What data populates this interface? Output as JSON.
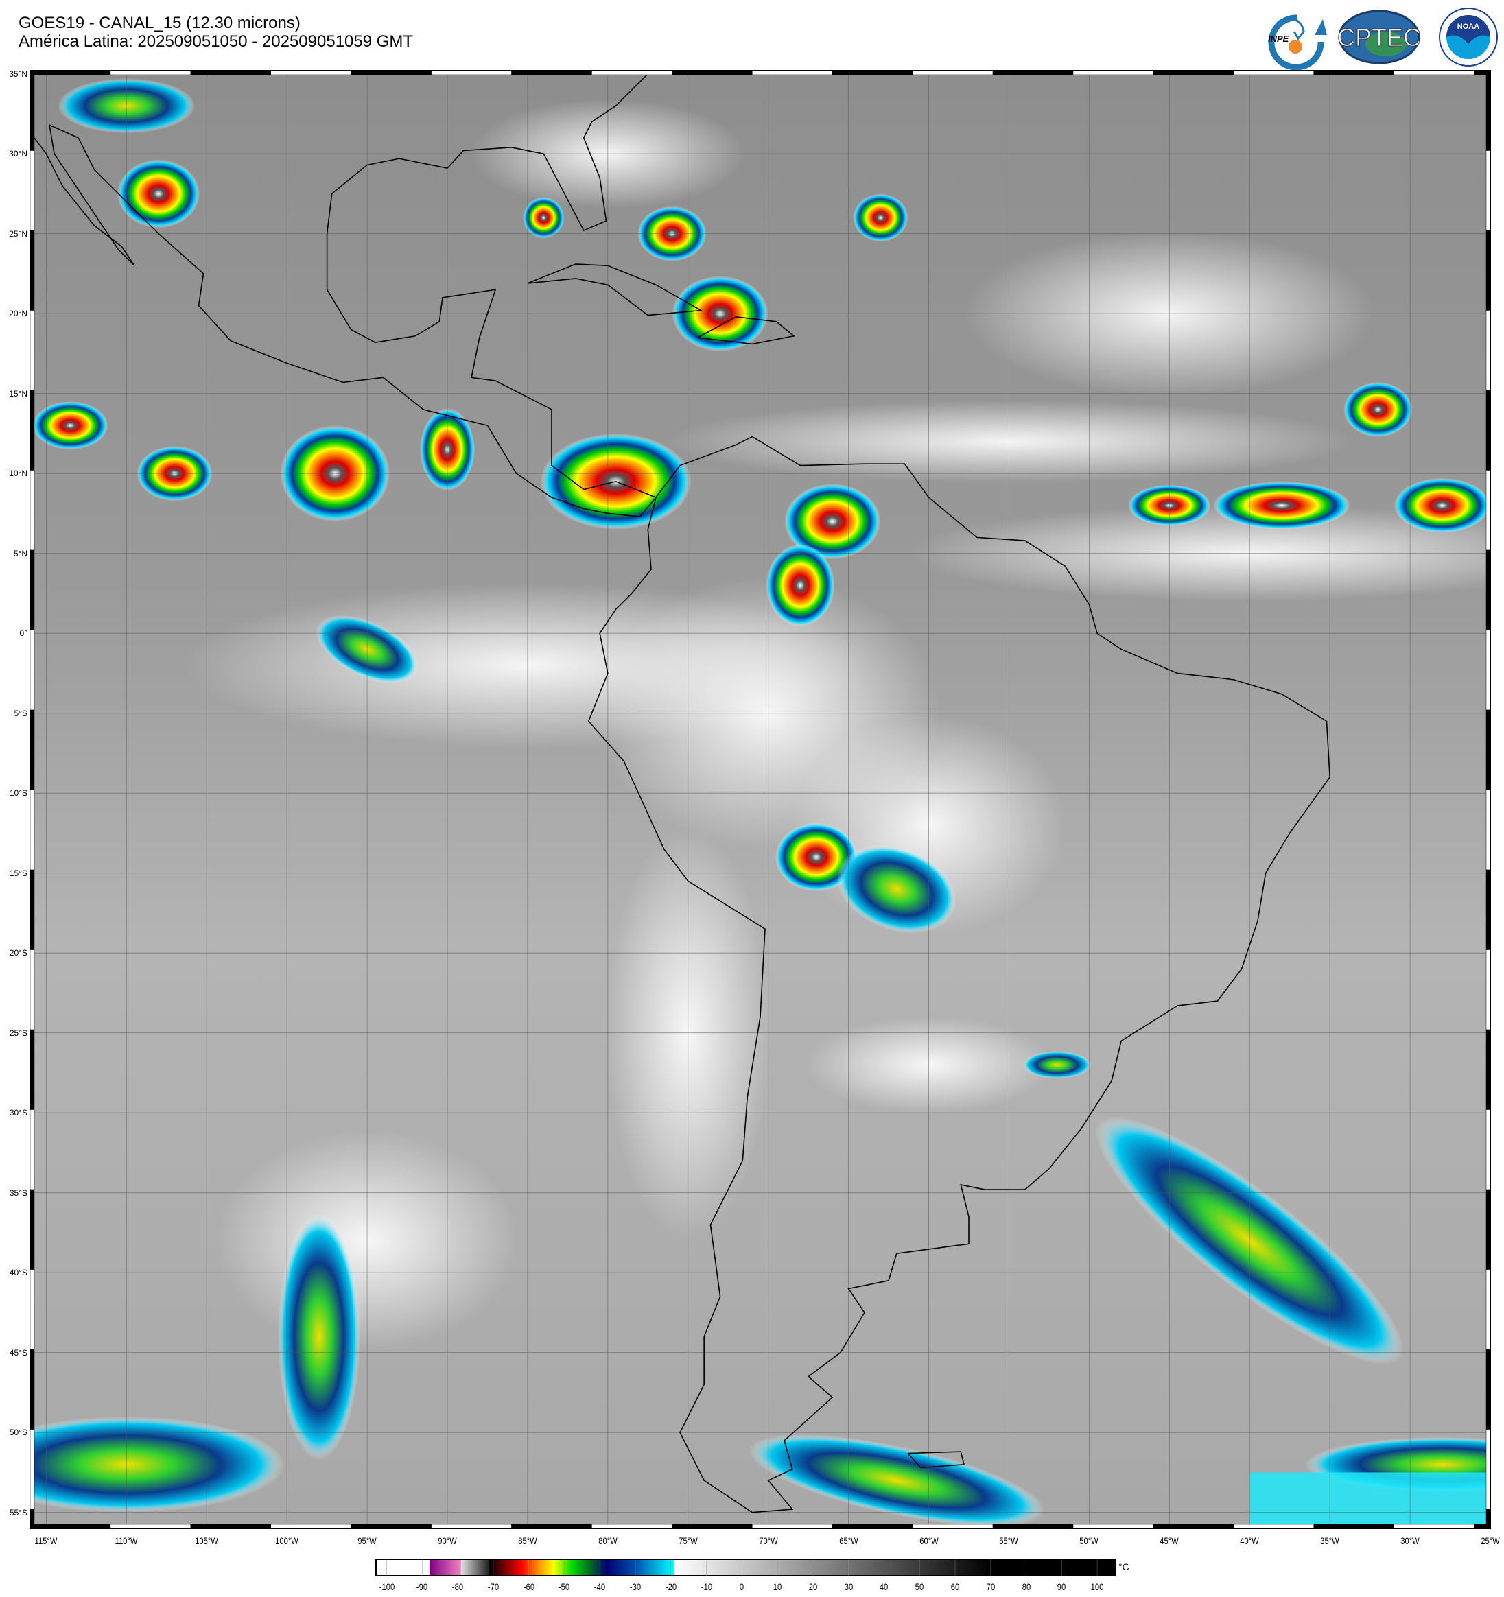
{
  "header": {
    "title_line1": "GOES19 - CANAL_15 (12.30 microns)",
    "title_line2": "América Latina: 202509051050 - 202509051059 GMT"
  },
  "logos": [
    {
      "name": "INPE",
      "text": "INPE"
    },
    {
      "name": "CPTEC",
      "text": "CPTEC"
    },
    {
      "name": "NOAA",
      "text": "NOAA",
      "ring_text": "NATIONAL OCEANIC AND ATMOSPHERIC ADMINISTRATION · U.S. DEPARTMENT OF COMMERCE"
    }
  ],
  "map": {
    "lon_range": [
      -116,
      -25
    ],
    "lat_range": [
      -56,
      35.2
    ],
    "grid": true,
    "grid_step_deg": 5,
    "lat_labels": [
      "35°N",
      "30°N",
      "25°N",
      "20°N",
      "15°N",
      "10°N",
      "5°N",
      "0°",
      "5°S",
      "10°S",
      "15°S",
      "20°S",
      "25°S",
      "30°S",
      "35°S",
      "40°S",
      "45°S",
      "50°S",
      "55°S"
    ],
    "lon_labels": [
      "115°W",
      "110°W",
      "105°W",
      "100°W",
      "95°W",
      "90°W",
      "85°W",
      "80°W",
      "75°W",
      "70°W",
      "65°W",
      "60°W",
      "55°W",
      "50°W",
      "45°W",
      "40°W",
      "35°W",
      "30°W",
      "25°W"
    ]
  },
  "colorbar": {
    "unit": "°C",
    "range": [
      -103,
      105
    ],
    "tick_labels": [
      "-100",
      "-90",
      "-80",
      "-70",
      "-60",
      "-50",
      "-40",
      "-30",
      "-20",
      "-10",
      "0",
      "10",
      "20",
      "30",
      "40",
      "50",
      "60",
      "70",
      "80",
      "90",
      "100"
    ],
    "stops": [
      {
        "t": -103,
        "color": "#ffffff"
      },
      {
        "t": -88,
        "color": "#ffffff"
      },
      {
        "t": -87.9,
        "color": "#800080"
      },
      {
        "t": -79.2,
        "color": "#f080c0"
      },
      {
        "t": -79,
        "color": "#e0e0e0"
      },
      {
        "t": -71.2,
        "color": "#202020"
      },
      {
        "t": -71,
        "color": "#000000"
      },
      {
        "t": -62,
        "color": "#ff0000"
      },
      {
        "t": -57,
        "color": "#ff9900"
      },
      {
        "t": -53,
        "color": "#ffff00"
      },
      {
        "t": -48,
        "color": "#00e000"
      },
      {
        "t": -43,
        "color": "#007020"
      },
      {
        "t": -38,
        "color": "#000070"
      },
      {
        "t": -30,
        "color": "#0050b0"
      },
      {
        "t": -19.2,
        "color": "#00ffff"
      },
      {
        "t": -19,
        "color": "#ffffff"
      },
      {
        "t": 70,
        "color": "#000000"
      },
      {
        "t": 105,
        "color": "#000000"
      }
    ]
  }
}
